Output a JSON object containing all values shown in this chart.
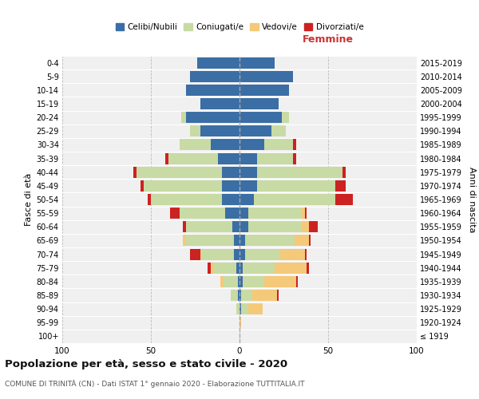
{
  "age_groups": [
    "100+",
    "95-99",
    "90-94",
    "85-89",
    "80-84",
    "75-79",
    "70-74",
    "65-69",
    "60-64",
    "55-59",
    "50-54",
    "45-49",
    "40-44",
    "35-39",
    "30-34",
    "25-29",
    "20-24",
    "15-19",
    "10-14",
    "5-9",
    "0-4"
  ],
  "birth_years": [
    "≤ 1919",
    "1920-1924",
    "1925-1929",
    "1930-1934",
    "1935-1939",
    "1940-1944",
    "1945-1949",
    "1950-1954",
    "1955-1959",
    "1960-1964",
    "1965-1969",
    "1970-1974",
    "1975-1979",
    "1980-1984",
    "1985-1989",
    "1990-1994",
    "1995-1999",
    "2000-2004",
    "2005-2009",
    "2010-2014",
    "2015-2019"
  ],
  "colors": {
    "celibi": "#3a6ea5",
    "coniugati": "#c8dba4",
    "vedovi": "#f5c97a",
    "divorziati": "#cc2222"
  },
  "male": {
    "celibi": [
      0,
      0,
      0,
      1,
      1,
      2,
      3,
      3,
      4,
      8,
      10,
      10,
      10,
      12,
      16,
      22,
      30,
      22,
      30,
      28,
      24
    ],
    "coniugati": [
      0,
      0,
      2,
      4,
      8,
      13,
      18,
      27,
      26,
      26,
      40,
      44,
      48,
      28,
      18,
      6,
      3,
      0,
      0,
      0,
      0
    ],
    "vedovi": [
      0,
      0,
      0,
      0,
      2,
      1,
      1,
      2,
      0,
      0,
      0,
      0,
      0,
      0,
      0,
      0,
      0,
      0,
      0,
      0,
      0
    ],
    "divorziati": [
      0,
      0,
      0,
      0,
      0,
      2,
      6,
      0,
      2,
      5,
      2,
      2,
      2,
      2,
      0,
      0,
      0,
      0,
      0,
      0,
      0
    ]
  },
  "female": {
    "celibi": [
      0,
      0,
      1,
      1,
      2,
      2,
      3,
      3,
      5,
      5,
      8,
      10,
      10,
      10,
      14,
      18,
      24,
      22,
      28,
      30,
      20
    ],
    "coniugati": [
      0,
      0,
      4,
      6,
      12,
      18,
      20,
      28,
      30,
      30,
      46,
      44,
      48,
      20,
      16,
      8,
      4,
      0,
      0,
      0,
      0
    ],
    "vedovi": [
      0,
      1,
      8,
      14,
      18,
      18,
      14,
      8,
      4,
      2,
      0,
      0,
      0,
      0,
      0,
      0,
      0,
      0,
      0,
      0,
      0
    ],
    "divorziati": [
      0,
      0,
      0,
      1,
      1,
      1,
      1,
      1,
      5,
      1,
      10,
      6,
      2,
      2,
      2,
      0,
      0,
      0,
      0,
      0,
      0
    ]
  },
  "title": "Popolazione per età, sesso e stato civile - 2020",
  "subtitle": "COMUNE DI TRINITÀ (CN) - Dati ISTAT 1° gennaio 2020 - Elaborazione TUTTITALIA.IT",
  "xlabel_right": "Femmine",
  "ylabel_left": "Fasce di età",
  "ylabel_right": "Anni di nascita",
  "xlim": 100,
  "background_color": "#ffffff",
  "plot_bg_color": "#f0f0f0",
  "grid_color": "#ffffff",
  "legend_labels": [
    "Celibi/Nubili",
    "Coniugati/e",
    "Vedovi/e",
    "Divorziati/e"
  ]
}
